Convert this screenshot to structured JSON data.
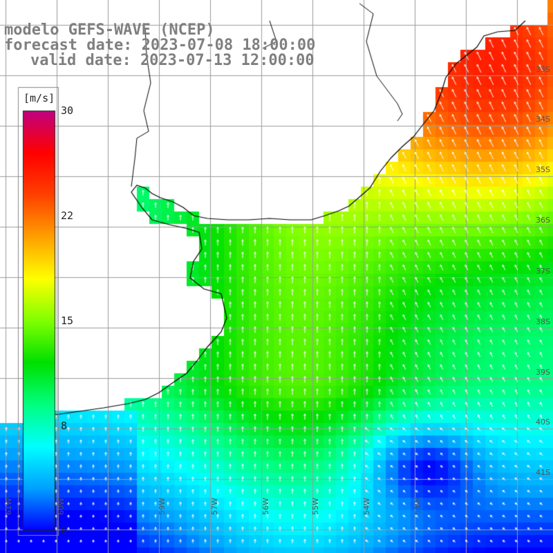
{
  "title": {
    "line1": "modelo GEFS-WAVE (NCEP)",
    "line2": "forecast date: 2023-07-08 18:00:00",
    "line3": "valid date: 2023-07-13 12:00:00"
  },
  "colorbar": {
    "unit": "[m/s]",
    "ticks": [
      "30",
      "22",
      "15",
      "8",
      "0"
    ],
    "tick_values": [
      30,
      22,
      15,
      8,
      0
    ],
    "colors": [
      "#0000ff",
      "#00a0ff",
      "#00ffff",
      "#00ff80",
      "#00e000",
      "#80ff00",
      "#ffff00",
      "#ffa000",
      "#ff4000",
      "#ff0000",
      "#c00080"
    ]
  },
  "map": {
    "lat_labels": [
      "33S",
      "34S",
      "35S",
      "36S",
      "37S",
      "38S",
      "39S",
      "40S",
      "41S"
    ],
    "lon_labels": [
      "61W",
      "60W",
      "59W",
      "57W",
      "56W",
      "55W",
      "54W",
      "53W"
    ],
    "land_color": "#ffffff",
    "coast_color": "#000000",
    "grid_color": "#9a9a9a",
    "arrow_color": "#ffffff"
  }
}
